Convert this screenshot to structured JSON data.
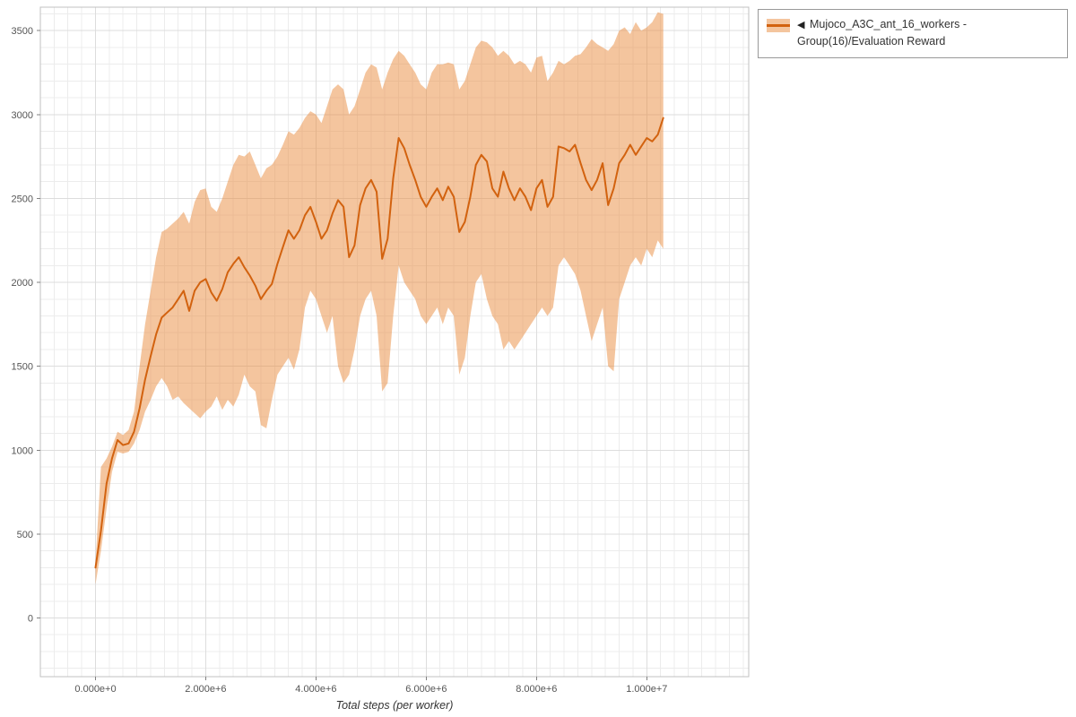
{
  "legend": {
    "collapse_icon": "◀",
    "label": "Mujoco_A3C_ant_16_workers - Group(16)/Evaluation Reward"
  },
  "chart_data": {
    "type": "line",
    "title": "",
    "xlabel": "Total steps (per worker)",
    "ylabel": "",
    "xlim": [
      -1000000,
      11850000
    ],
    "ylim": [
      -350,
      3640
    ],
    "x_ticks": [
      0,
      2000000,
      4000000,
      6000000,
      8000000,
      10000000
    ],
    "x_tick_labels": [
      "0.000e+0",
      "2.000e+6",
      "4.000e+6",
      "6.000e+6",
      "8.000e+6",
      "1.000e+7"
    ],
    "y_ticks": [
      0,
      500,
      1000,
      1500,
      2000,
      2500,
      3000,
      3500
    ],
    "grid": {
      "show": true,
      "major_color": "#dddddd",
      "minor_color": "#ececec",
      "minor_x_step": 250000,
      "minor_y_step": 100,
      "border_color": "#c0c0c0",
      "tick_color": "#808080",
      "tick_label_color": "#555555"
    },
    "legend_position": "top-right",
    "series": [
      {
        "name": "Mujoco_A3C_ant_16_workers - Group(16)/Evaluation Reward",
        "color": "#d2620f",
        "band_color": "#e98c3e",
        "band_opacity": 0.5,
        "x_e6": [
          0.0,
          0.1,
          0.2,
          0.3,
          0.4,
          0.5,
          0.6,
          0.7,
          0.8,
          0.9,
          1.0,
          1.1,
          1.2,
          1.3,
          1.4,
          1.5,
          1.6,
          1.7,
          1.8,
          1.9,
          2.0,
          2.1,
          2.2,
          2.3,
          2.4,
          2.5,
          2.6,
          2.7,
          2.8,
          2.9,
          3.0,
          3.1,
          3.2,
          3.3,
          3.4,
          3.5,
          3.6,
          3.7,
          3.8,
          3.9,
          4.0,
          4.1,
          4.2,
          4.3,
          4.4,
          4.5,
          4.6,
          4.7,
          4.8,
          4.9,
          5.0,
          5.1,
          5.2,
          5.3,
          5.4,
          5.5,
          5.6,
          5.7,
          5.8,
          5.9,
          6.0,
          6.1,
          6.2,
          6.3,
          6.4,
          6.5,
          6.6,
          6.7,
          6.8,
          6.9,
          7.0,
          7.1,
          7.2,
          7.3,
          7.4,
          7.5,
          7.6,
          7.7,
          7.8,
          7.9,
          8.0,
          8.1,
          8.2,
          8.3,
          8.4,
          8.5,
          8.6,
          8.7,
          8.8,
          8.9,
          9.0,
          9.1,
          9.2,
          9.3,
          9.4,
          9.5,
          9.6,
          9.7,
          9.8,
          9.9,
          10.0,
          10.1,
          10.2,
          10.3
        ],
        "mean": [
          300,
          520,
          800,
          950,
          1060,
          1030,
          1040,
          1110,
          1250,
          1420,
          1560,
          1690,
          1790,
          1820,
          1850,
          1900,
          1950,
          1830,
          1950,
          2000,
          2020,
          1940,
          1890,
          1960,
          2060,
          2110,
          2150,
          2090,
          2040,
          1980,
          1900,
          1950,
          1990,
          2110,
          2210,
          2310,
          2260,
          2310,
          2400,
          2450,
          2360,
          2260,
          2310,
          2410,
          2490,
          2450,
          2150,
          2220,
          2460,
          2560,
          2610,
          2540,
          2140,
          2260,
          2620,
          2860,
          2800,
          2700,
          2610,
          2510,
          2450,
          2510,
          2560,
          2490,
          2570,
          2510,
          2300,
          2360,
          2510,
          2700,
          2760,
          2720,
          2560,
          2510,
          2660,
          2560,
          2490,
          2560,
          2510,
          2430,
          2560,
          2610,
          2450,
          2510,
          2810,
          2800,
          2780,
          2820,
          2710,
          2610,
          2550,
          2610,
          2710,
          2460,
          2560,
          2710,
          2760,
          2820,
          2760,
          2810,
          2860,
          2840,
          2880,
          2980
        ],
        "lower": [
          200,
          400,
          650,
          870,
          990,
          980,
          990,
          1040,
          1120,
          1230,
          1300,
          1380,
          1430,
          1380,
          1300,
          1320,
          1280,
          1250,
          1220,
          1190,
          1230,
          1260,
          1320,
          1240,
          1300,
          1260,
          1330,
          1450,
          1380,
          1350,
          1150,
          1130,
          1300,
          1450,
          1500,
          1550,
          1480,
          1600,
          1850,
          1950,
          1900,
          1800,
          1700,
          1800,
          1500,
          1400,
          1450,
          1600,
          1800,
          1900,
          1950,
          1800,
          1350,
          1400,
          1800,
          2100,
          2000,
          1950,
          1900,
          1800,
          1750,
          1800,
          1850,
          1750,
          1850,
          1800,
          1450,
          1550,
          1800,
          2000,
          2050,
          1900,
          1800,
          1750,
          1600,
          1650,
          1600,
          1650,
          1700,
          1750,
          1800,
          1850,
          1800,
          1850,
          2100,
          2150,
          2100,
          2050,
          1950,
          1800,
          1650,
          1750,
          1850,
          1500,
          1470,
          1900,
          2000,
          2100,
          2150,
          2100,
          2200,
          2150,
          2250,
          2200
        ],
        "upper": [
          330,
          900,
          950,
          1020,
          1110,
          1090,
          1120,
          1230,
          1500,
          1750,
          1950,
          2150,
          2300,
          2320,
          2350,
          2380,
          2420,
          2350,
          2480,
          2550,
          2560,
          2450,
          2420,
          2500,
          2600,
          2700,
          2760,
          2750,
          2780,
          2700,
          2620,
          2680,
          2700,
          2750,
          2820,
          2900,
          2880,
          2920,
          2980,
          3020,
          3000,
          2950,
          3050,
          3150,
          3180,
          3150,
          3000,
          3050,
          3150,
          3250,
          3300,
          3280,
          3150,
          3250,
          3330,
          3380,
          3350,
          3300,
          3250,
          3180,
          3150,
          3250,
          3300,
          3300,
          3310,
          3300,
          3150,
          3200,
          3300,
          3400,
          3440,
          3430,
          3400,
          3350,
          3380,
          3350,
          3300,
          3320,
          3300,
          3250,
          3340,
          3350,
          3200,
          3250,
          3320,
          3300,
          3320,
          3350,
          3360,
          3400,
          3450,
          3420,
          3400,
          3380,
          3420,
          3500,
          3520,
          3480,
          3550,
          3500,
          3520,
          3550,
          3610,
          3600
        ]
      }
    ]
  }
}
